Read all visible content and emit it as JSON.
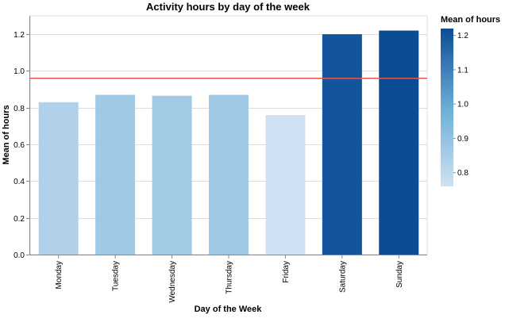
{
  "chart_data": {
    "type": "bar",
    "title": "Activity hours by day of the week",
    "xlabel": "Day of the Week",
    "ylabel": "Mean of hours",
    "categories": [
      "Monday",
      "Tuesday",
      "Wednesday",
      "Thursday",
      "Friday",
      "Saturday",
      "Sunday"
    ],
    "values": [
      0.83,
      0.87,
      0.865,
      0.87,
      0.76,
      1.2,
      1.22
    ],
    "ylim": [
      0,
      1.3
    ],
    "yticks": [
      "0.0",
      "0.2",
      "0.4",
      "0.6",
      "0.8",
      "1.0",
      "1.2"
    ],
    "reference_line": {
      "value": 0.96,
      "color": "#e45756"
    },
    "grid": true,
    "legend": {
      "title": "Mean of hours",
      "position": "top-right",
      "domain": [
        0.76,
        1.22
      ],
      "ticks": [
        "0.8",
        "0.9",
        "1.0",
        "1.1",
        "1.2"
      ],
      "color_low": "#cfe1f2",
      "color_high": "#0b4d94"
    }
  }
}
